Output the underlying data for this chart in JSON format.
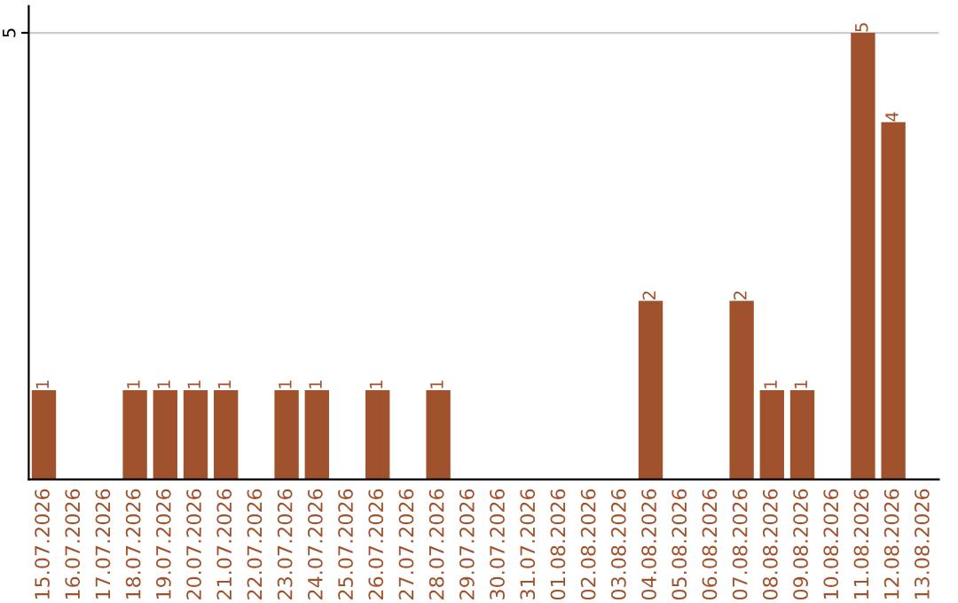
{
  "chart_data": {
    "type": "bar",
    "categories": [
      "15.07.2026",
      "16.07.2026",
      "17.07.2026",
      "18.07.2026",
      "19.07.2026",
      "20.07.2026",
      "21.07.2026",
      "22.07.2026",
      "23.07.2026",
      "24.07.2026",
      "25.07.2026",
      "26.07.2026",
      "27.07.2026",
      "28.07.2026",
      "29.07.2026",
      "30.07.2026",
      "31.07.2026",
      "01.08.2026",
      "02.08.2026",
      "03.08.2026",
      "04.08.2026",
      "05.08.2026",
      "06.08.2026",
      "07.08.2026",
      "08.08.2026",
      "09.08.2026",
      "10.08.2026",
      "11.08.2026",
      "12.08.2026",
      "13.08.2026"
    ],
    "values": [
      1,
      0,
      0,
      1,
      1,
      1,
      1,
      0,
      1,
      1,
      0,
      1,
      0,
      1,
      0,
      0,
      0,
      0,
      0,
      0,
      2,
      0,
      0,
      2,
      1,
      1,
      0,
      5,
      4,
      0
    ],
    "value_labels": [
      "1",
      null,
      null,
      "1",
      "1",
      "1",
      "1",
      null,
      "1",
      "1",
      null,
      "1",
      null,
      "1",
      null,
      null,
      null,
      null,
      null,
      null,
      "2",
      null,
      null,
      "2",
      "1",
      "1",
      null,
      "5",
      "4",
      null
    ],
    "color": "#a0522d",
    "ylim": [
      0,
      5.3
    ],
    "yticks": [
      5
    ],
    "grid": "y"
  }
}
